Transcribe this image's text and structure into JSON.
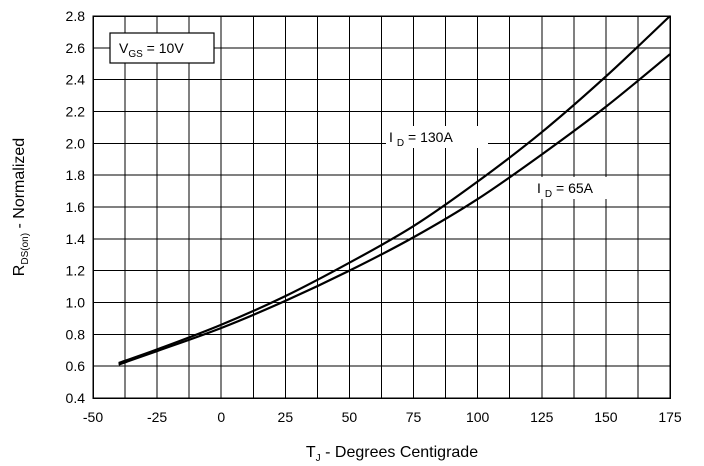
{
  "chart_data": {
    "type": "line",
    "xlabel": {
      "main": "T",
      "sub": "J",
      "rest": " - Degrees Centigrade"
    },
    "ylabel": {
      "main": "R",
      "sub": "DS(on)",
      "rest": " - Normalized"
    },
    "xlim": [
      -50,
      175
    ],
    "ylim": [
      0.4,
      2.8
    ],
    "x_ticks": [
      -50,
      -25,
      0,
      25,
      50,
      75,
      100,
      125,
      150,
      175
    ],
    "x_tick_labels": [
      "-50",
      "-25",
      "0",
      "25",
      "50",
      "75",
      "100",
      "125",
      "150",
      "175"
    ],
    "y_ticks": [
      0.4,
      0.6,
      0.8,
      1.0,
      1.2,
      1.4,
      1.6,
      1.8,
      2.0,
      2.2,
      2.4,
      2.6,
      2.8
    ],
    "y_tick_labels": [
      "0.4",
      "0.6",
      "0.8",
      "1.0",
      "1.2",
      "1.4",
      "1.6",
      "1.8",
      "2.0",
      "2.2",
      "2.4",
      "2.6",
      "2.8"
    ],
    "x_grid_step": 12.5,
    "grid": true,
    "condition_box": {
      "main": "V",
      "sub": "GS",
      "rest": " = 10V"
    },
    "series": [
      {
        "name_main": "I",
        "name_sub": "D",
        "name_rest": " = 130A",
        "x": [
          -40,
          -25,
          0,
          25,
          50,
          75,
          100,
          125,
          150,
          175
        ],
        "y": [
          0.62,
          0.705,
          0.86,
          1.04,
          1.25,
          1.48,
          1.76,
          2.07,
          2.42,
          2.8
        ]
      },
      {
        "name_main": "I",
        "name_sub": "D",
        "name_rest": " = 65A",
        "x": [
          -40,
          -25,
          0,
          25,
          50,
          75,
          100,
          125,
          150,
          175
        ],
        "y": [
          0.61,
          0.695,
          0.84,
          1.01,
          1.2,
          1.41,
          1.65,
          1.93,
          2.23,
          2.56
        ]
      }
    ]
  }
}
